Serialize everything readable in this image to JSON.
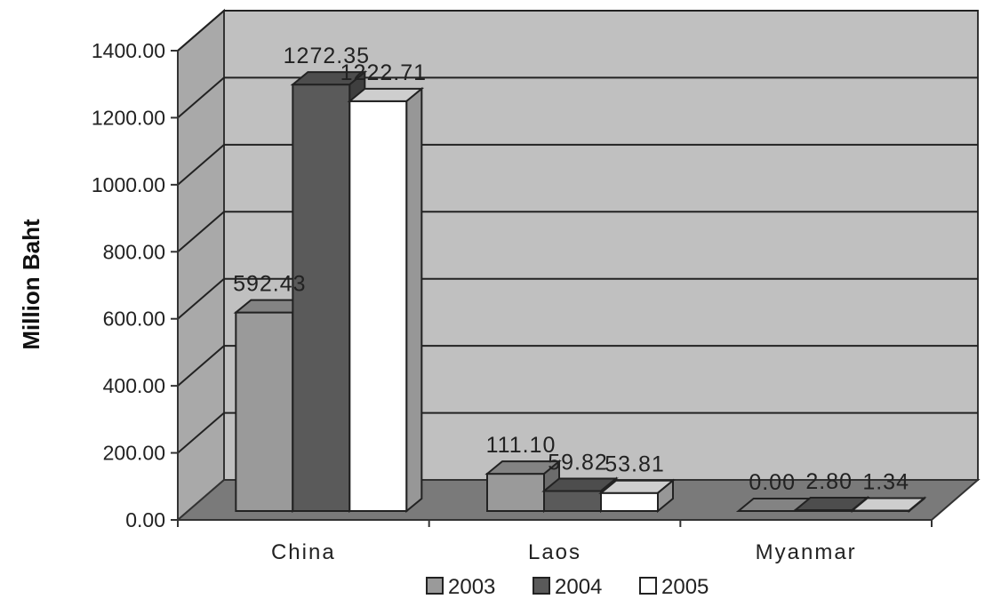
{
  "chart_data": {
    "type": "bar",
    "style": "3d-clustered-column",
    "categories": [
      "China",
      "Laos",
      "Myanmar"
    ],
    "series": [
      {
        "name": "2003",
        "values": [
          592.43,
          111.1,
          0.0
        ],
        "labels": [
          "592.43",
          "111.10",
          "0.00"
        ],
        "color": "#9a9a9a"
      },
      {
        "name": "2004",
        "values": [
          1272.35,
          59.82,
          2.8
        ],
        "labels": [
          "1272.35",
          "59.82",
          "2.80"
        ],
        "color": "#5a5a5a"
      },
      {
        "name": "2005",
        "values": [
          1222.71,
          53.81,
          1.34
        ],
        "labels": [
          "1222.71",
          "53.81",
          "1.34"
        ],
        "color": "#ffffff"
      }
    ],
    "ylabel": "Million Baht",
    "ylim": [
      0,
      1400
    ],
    "yticks": [
      "0.00",
      "200.00",
      "400.00",
      "600.00",
      "800.00",
      "1000.00",
      "1200.00",
      "1400.00"
    ],
    "grid": true,
    "legend_position": "bottom",
    "wall_color": "#c0c0c0",
    "floor_color": "#7a7a7a"
  }
}
